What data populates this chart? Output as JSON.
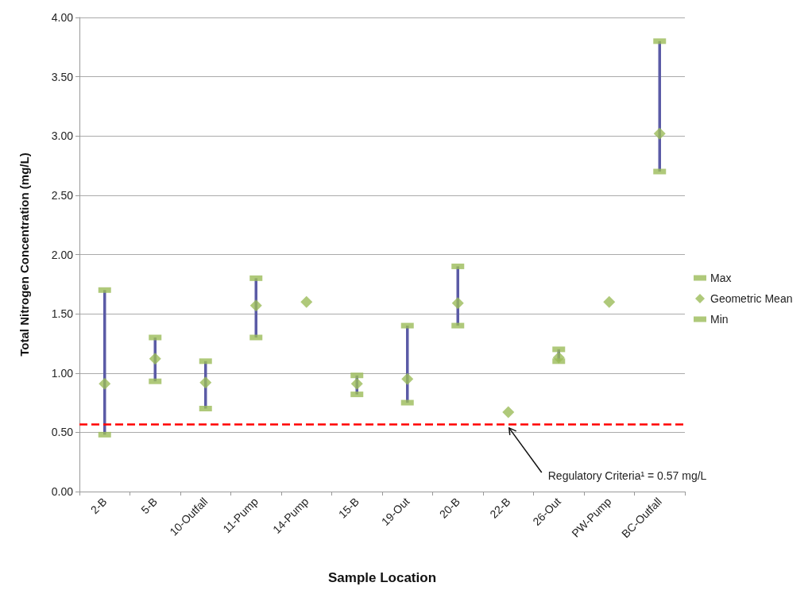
{
  "chart_data": {
    "type": "scatter",
    "xlabel": "Sample Location",
    "ylabel": "Total Nitrogen Concentration (mg/L)",
    "categories": [
      "2-B",
      "5-B",
      "10-Outfall",
      "11-Pump",
      "14-Pump",
      "15-B",
      "19-Out",
      "20-B",
      "22-B",
      "26-Out",
      "PW-Pump",
      "BC-Outfall"
    ],
    "series": [
      {
        "name": "Max",
        "color": "#9bbb59",
        "marker": "square",
        "values": [
          1.7,
          1.3,
          1.1,
          1.8,
          null,
          0.98,
          1.4,
          1.9,
          null,
          1.2,
          null,
          3.8
        ]
      },
      {
        "name": "Geometric Mean",
        "color": "#9bbb59",
        "values": [
          0.91,
          1.12,
          0.92,
          1.57,
          1.6,
          0.91,
          0.95,
          1.59,
          0.67,
          1.13,
          1.6,
          3.02
        ]
      },
      {
        "name": "Min",
        "color": "#9bbb59",
        "marker": "square",
        "values": [
          0.48,
          0.93,
          0.7,
          1.3,
          null,
          0.82,
          0.75,
          1.4,
          null,
          1.1,
          null,
          2.7
        ]
      }
    ],
    "marker": "diamond",
    "ylim": [
      0,
      4
    ],
    "yticks": [
      {
        "value": 0,
        "label": "0.00"
      },
      {
        "value": 0.5,
        "label": "0.50"
      },
      {
        "value": 1,
        "label": "1.00"
      },
      {
        "value": 1.5,
        "label": "1.50"
      },
      {
        "value": 2,
        "label": "2.00"
      },
      {
        "value": 2.5,
        "label": "2.50"
      },
      {
        "value": 3,
        "label": "3.00"
      },
      {
        "value": 3.5,
        "label": "3.50"
      },
      {
        "value": 4,
        "label": "4.00"
      }
    ],
    "grid": "y",
    "legend": "right",
    "ref_lines": [
      {
        "axis": "y",
        "value": 0.57,
        "label": "Regulatory Criteria¹ = 0.57 mg/L",
        "color": "#ff0000",
        "line_style": "dashed"
      }
    ]
  }
}
